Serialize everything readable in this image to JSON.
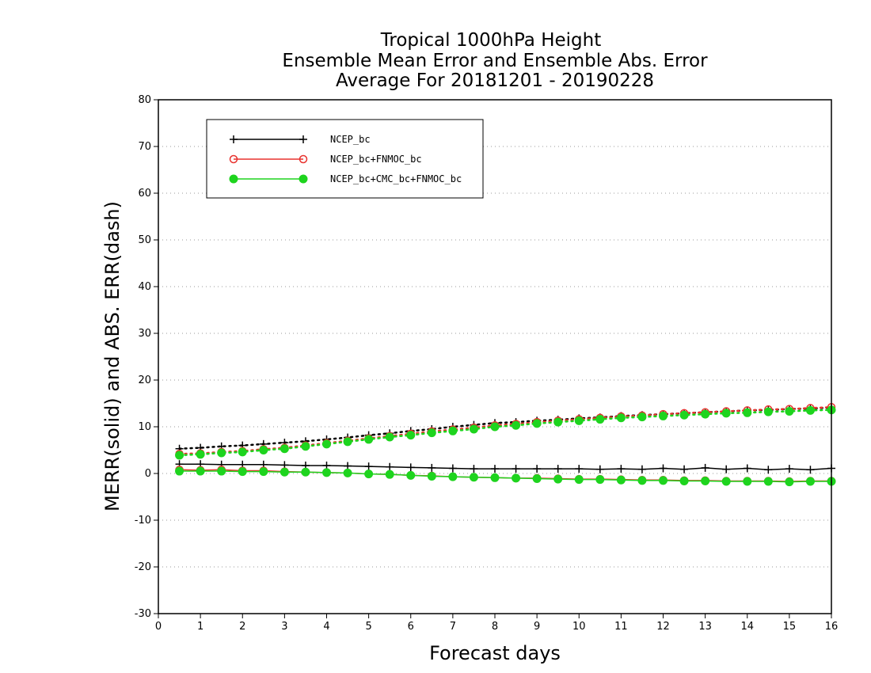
{
  "chart_data": {
    "type": "line",
    "title": [
      "Tropical 1000hPa Height",
      "Ensemble Mean Error and Ensemble Abs. Error",
      "Average For 20181201 - 20190228"
    ],
    "xlabel": "Forecast days",
    "ylabel": "MERR(solid) and ABS. ERR(dash)",
    "xlim": [
      0,
      16
    ],
    "ylim": [
      -30,
      80
    ],
    "xticks": [
      0,
      1,
      2,
      3,
      4,
      5,
      6,
      7,
      8,
      9,
      10,
      11,
      12,
      13,
      14,
      15,
      16
    ],
    "yticks": [
      -30,
      -20,
      -10,
      0,
      10,
      20,
      30,
      40,
      50,
      60,
      70,
      80
    ],
    "grid": true,
    "legend_position": "top-left",
    "x": [
      0.5,
      1,
      1.5,
      2,
      2.5,
      3,
      3.5,
      4,
      4.5,
      5,
      5.5,
      6,
      6.5,
      7,
      7.5,
      8,
      8.5,
      9,
      9.5,
      10,
      10.5,
      11,
      11.5,
      12,
      12.5,
      13,
      13.5,
      14,
      14.5,
      15,
      15.5,
      16
    ],
    "series": [
      {
        "name": "NCEP_bc",
        "color": "#000000",
        "marker": "plus",
        "merr": [
          2.0,
          2.0,
          1.9,
          1.9,
          1.9,
          1.8,
          1.7,
          1.7,
          1.6,
          1.5,
          1.4,
          1.3,
          1.2,
          1.1,
          1.0,
          1.0,
          1.0,
          1.0,
          1.0,
          1.0,
          0.9,
          1.0,
          0.9,
          1.1,
          0.9,
          1.2,
          0.9,
          1.1,
          0.8,
          1.0,
          0.8,
          1.1
        ],
        "abs_err": [
          5.3,
          5.5,
          5.8,
          6.0,
          6.3,
          6.6,
          6.9,
          7.3,
          7.7,
          8.2,
          8.6,
          9.1,
          9.5,
          10.0,
          10.4,
          10.8,
          11.0,
          11.3,
          11.5,
          11.8,
          12.0,
          12.3,
          12.5,
          12.7,
          12.9,
          13.1,
          13.3,
          13.5,
          13.6,
          13.8,
          13.9,
          14.1
        ]
      },
      {
        "name": "NCEP_bc+FNMOC_bc",
        "color": "#e8322e",
        "marker": "open-circle",
        "merr": [
          0.8,
          0.7,
          0.8,
          0.6,
          0.6,
          0.4,
          0.3,
          0.2,
          0.1,
          -0.1,
          -0.2,
          -0.4,
          -0.5,
          -0.7,
          -0.8,
          -0.9,
          -1.0,
          -1.0,
          -1.1,
          -1.2,
          -1.2,
          -1.3,
          -1.4,
          -1.4,
          -1.5,
          -1.5,
          -1.6,
          -1.6,
          -1.6,
          -1.7,
          -1.6,
          -1.6
        ],
        "abs_err": [
          4.2,
          4.3,
          4.6,
          4.8,
          5.2,
          5.5,
          6.0,
          6.5,
          7.0,
          7.5,
          8.0,
          8.5,
          9.0,
          9.4,
          9.8,
          10.3,
          10.6,
          11.0,
          11.3,
          11.6,
          11.9,
          12.2,
          12.4,
          12.7,
          12.9,
          13.1,
          13.3,
          13.5,
          13.7,
          13.8,
          14.0,
          14.2
        ]
      },
      {
        "name": "NCEP_bc+CMC_bc+FNMOC_bc",
        "color": "#1ed41e",
        "marker": "filled-circle",
        "merr": [
          0.5,
          0.5,
          0.5,
          0.4,
          0.4,
          0.3,
          0.3,
          0.2,
          0.1,
          -0.1,
          -0.2,
          -0.4,
          -0.6,
          -0.7,
          -0.8,
          -0.9,
          -1.0,
          -1.1,
          -1.2,
          -1.3,
          -1.3,
          -1.4,
          -1.5,
          -1.5,
          -1.6,
          -1.6,
          -1.7,
          -1.7,
          -1.7,
          -1.8,
          -1.7,
          -1.7
        ],
        "abs_err": [
          3.9,
          4.1,
          4.4,
          4.6,
          5.0,
          5.3,
          5.8,
          6.3,
          6.8,
          7.3,
          7.8,
          8.2,
          8.7,
          9.1,
          9.5,
          10.0,
          10.3,
          10.7,
          11.0,
          11.3,
          11.6,
          11.9,
          12.1,
          12.3,
          12.5,
          12.7,
          12.9,
          13.0,
          13.2,
          13.3,
          13.5,
          13.6
        ]
      }
    ]
  }
}
